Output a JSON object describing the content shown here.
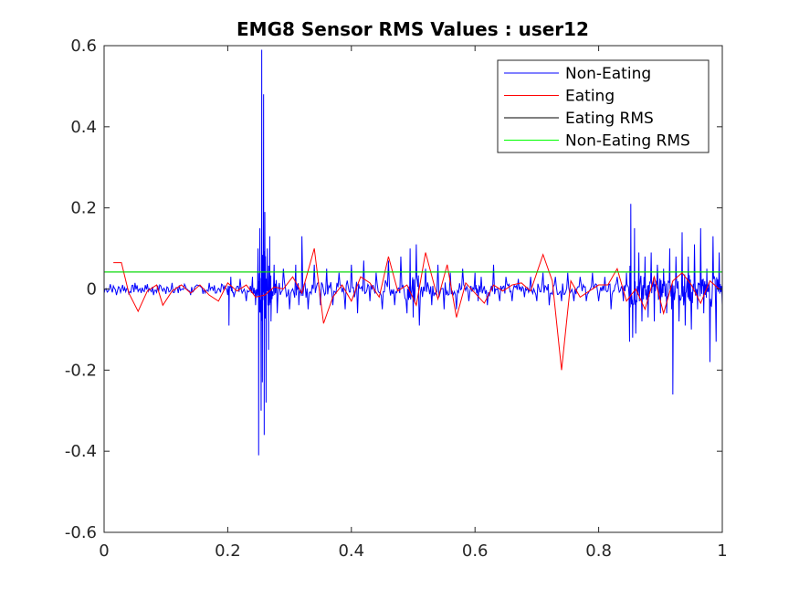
{
  "chart_data": {
    "type": "line",
    "title": "EMG8 Sensor RMS Values : user12",
    "xlabel": "",
    "ylabel": "",
    "xlim": [
      0,
      1
    ],
    "ylim": [
      -0.6,
      0.6
    ],
    "x_ticks": [
      "0",
      "0.2",
      "0.4",
      "0.6",
      "0.8",
      "1"
    ],
    "y_ticks": [
      "-0.6",
      "-0.4",
      "-0.2",
      "0",
      "0.2",
      "0.4",
      "0.6"
    ],
    "grid": false,
    "legend_position": "top-right",
    "series": [
      {
        "name": "Non-Eating",
        "color": "#0000ff",
        "x": [
          0.0,
          0.01,
          0.02,
          0.03,
          0.04,
          0.05,
          0.06,
          0.07,
          0.08,
          0.09,
          0.1,
          0.11,
          0.12,
          0.13,
          0.14,
          0.15,
          0.16,
          0.17,
          0.18,
          0.19,
          0.2,
          0.202,
          0.205,
          0.21,
          0.22,
          0.23,
          0.24,
          0.245,
          0.249,
          0.25,
          0.252,
          0.254,
          0.255,
          0.256,
          0.258,
          0.259,
          0.26,
          0.262,
          0.264,
          0.266,
          0.268,
          0.27,
          0.275,
          0.28,
          0.29,
          0.3,
          0.31,
          0.315,
          0.32,
          0.33,
          0.34,
          0.35,
          0.36,
          0.37,
          0.38,
          0.39,
          0.4,
          0.41,
          0.42,
          0.43,
          0.44,
          0.45,
          0.46,
          0.47,
          0.48,
          0.49,
          0.495,
          0.5,
          0.505,
          0.51,
          0.52,
          0.53,
          0.54,
          0.55,
          0.56,
          0.57,
          0.58,
          0.59,
          0.6,
          0.605,
          0.61,
          0.62,
          0.63,
          0.64,
          0.65,
          0.66,
          0.67,
          0.68,
          0.69,
          0.7,
          0.71,
          0.72,
          0.73,
          0.74,
          0.75,
          0.76,
          0.77,
          0.78,
          0.79,
          0.8,
          0.81,
          0.82,
          0.83,
          0.84,
          0.845,
          0.85,
          0.852,
          0.855,
          0.858,
          0.86,
          0.865,
          0.87,
          0.875,
          0.88,
          0.885,
          0.89,
          0.895,
          0.9,
          0.905,
          0.91,
          0.915,
          0.918,
          0.92,
          0.925,
          0.93,
          0.935,
          0.94,
          0.945,
          0.95,
          0.955,
          0.96,
          0.965,
          0.97,
          0.975,
          0.98,
          0.985,
          0.99,
          0.995,
          1.0
        ],
        "y": [
          -0.01,
          0.012,
          -0.015,
          0.01,
          -0.012,
          0.015,
          -0.01,
          0.012,
          -0.015,
          0.01,
          -0.012,
          0.015,
          -0.01,
          0.012,
          -0.015,
          0.01,
          -0.012,
          0.015,
          -0.01,
          0.012,
          -0.015,
          -0.09,
          0.03,
          -0.02,
          0.025,
          -0.03,
          0.03,
          -0.04,
          0.1,
          -0.41,
          0.15,
          -0.3,
          0.59,
          -0.23,
          0.48,
          -0.36,
          0.19,
          -0.28,
          0.1,
          -0.15,
          0.13,
          -0.08,
          0.06,
          -0.06,
          0.05,
          -0.05,
          0.06,
          -0.04,
          0.13,
          -0.05,
          0.06,
          -0.04,
          0.05,
          -0.04,
          0.04,
          -0.05,
          0.06,
          -0.06,
          0.07,
          -0.03,
          0.04,
          -0.05,
          0.07,
          -0.04,
          0.08,
          -0.06,
          0.1,
          -0.07,
          0.11,
          -0.09,
          0.05,
          -0.04,
          0.06,
          -0.05,
          0.04,
          -0.05,
          0.05,
          -0.03,
          0.04,
          -0.03,
          0.03,
          -0.04,
          0.06,
          -0.03,
          0.03,
          -0.03,
          0.025,
          -0.02,
          0.03,
          -0.03,
          0.04,
          -0.04,
          0.03,
          -0.03,
          0.04,
          -0.03,
          0.03,
          -0.03,
          0.04,
          -0.03,
          0.03,
          -0.05,
          0.03,
          -0.03,
          0.04,
          -0.13,
          0.21,
          -0.12,
          0.15,
          -0.11,
          0.09,
          -0.08,
          0.08,
          -0.07,
          0.09,
          -0.08,
          0.06,
          -0.06,
          0.05,
          -0.06,
          0.1,
          -0.05,
          -0.26,
          0.08,
          -0.08,
          0.14,
          -0.09,
          0.08,
          -0.1,
          0.11,
          -0.05,
          0.15,
          -0.06,
          0.05,
          -0.18,
          0.13,
          -0.13,
          0.09,
          -0.04
        ]
      },
      {
        "name": "Eating",
        "color": "#ff0000",
        "x": [
          0.015,
          0.028,
          0.04,
          0.055,
          0.07,
          0.085,
          0.095,
          0.11,
          0.125,
          0.14,
          0.155,
          0.17,
          0.185,
          0.2,
          0.215,
          0.23,
          0.245,
          0.26,
          0.275,
          0.29,
          0.305,
          0.32,
          0.34,
          0.355,
          0.37,
          0.385,
          0.4,
          0.415,
          0.43,
          0.445,
          0.46,
          0.475,
          0.49,
          0.505,
          0.52,
          0.54,
          0.555,
          0.57,
          0.585,
          0.6,
          0.615,
          0.63,
          0.645,
          0.66,
          0.675,
          0.69,
          0.71,
          0.725,
          0.74,
          0.755,
          0.77,
          0.785,
          0.8,
          0.815,
          0.83,
          0.845,
          0.86,
          0.875,
          0.89,
          0.905,
          0.92,
          0.935,
          0.95,
          0.965,
          0.98,
          0.995
        ],
        "y": [
          0.065,
          0.065,
          -0.01,
          -0.055,
          -0.005,
          0.01,
          -0.04,
          -0.005,
          0.01,
          -0.01,
          0.01,
          -0.015,
          -0.03,
          0.015,
          -0.005,
          0.01,
          -0.02,
          -0.015,
          0.005,
          0.0,
          0.03,
          -0.01,
          0.1,
          -0.085,
          -0.02,
          0.01,
          -0.03,
          0.03,
          0.015,
          -0.02,
          0.08,
          -0.005,
          0.01,
          -0.04,
          0.09,
          -0.025,
          0.06,
          -0.07,
          0.015,
          -0.01,
          -0.035,
          0.01,
          -0.005,
          0.01,
          0.015,
          -0.005,
          0.085,
          0.02,
          -0.2,
          0.02,
          -0.02,
          -0.005,
          0.01,
          0.01,
          0.05,
          -0.03,
          0.0,
          -0.05,
          0.03,
          -0.06,
          0.02,
          0.04,
          0.01,
          -0.035,
          0.02,
          0.0
        ]
      },
      {
        "name": "Eating RMS",
        "color": "#000000",
        "x": [
          0,
          1
        ],
        "y": [
          0.042,
          0.042
        ]
      },
      {
        "name": "Non-Eating RMS",
        "color": "#00ff00",
        "x": [
          0,
          1
        ],
        "y": [
          0.042,
          0.042
        ]
      }
    ]
  }
}
